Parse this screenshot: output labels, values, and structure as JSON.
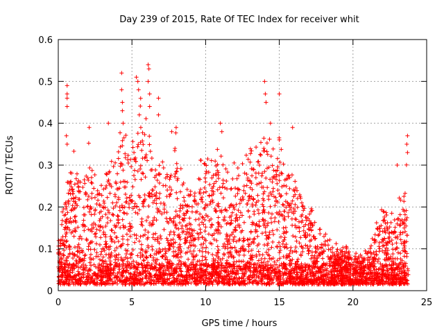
{
  "chart_data": {
    "type": "scatter",
    "title": "Day 239 of 2015, Rate Of TEC Index for receiver whit",
    "xlabel": "GPS time / hours",
    "ylabel": "ROTI / TECUs",
    "xlim": [
      0,
      25
    ],
    "ylim": [
      0,
      0.6
    ],
    "x_ticks": [
      0,
      5,
      10,
      15,
      20,
      25
    ],
    "x_tick_labels": [
      "0",
      "5",
      "10",
      "15",
      "20",
      "25"
    ],
    "y_ticks": [
      0,
      0.1,
      0.2,
      0.3,
      0.4,
      0.5,
      0.6
    ],
    "y_tick_labels": [
      "0",
      "0.1",
      "0.2",
      "0.3",
      "0.4",
      "0.5",
      "0.6"
    ],
    "grid": true,
    "marker": "+",
    "color": "#ff0000",
    "data_range_hours": [
      0,
      23.75
    ],
    "envelope": {
      "description": "approximate upper envelope of ROTI vs GPS time",
      "x": [
        0,
        0.5,
        1,
        1.5,
        2,
        2.5,
        3,
        3.5,
        4,
        4.5,
        5,
        5.5,
        6,
        6.5,
        7,
        7.5,
        8,
        8.5,
        9,
        9.5,
        10,
        10.5,
        11,
        11.5,
        12,
        12.5,
        13,
        13.5,
        14,
        14.5,
        15,
        15.5,
        16,
        16.5,
        17,
        17.5,
        18,
        18.5,
        19,
        19.5,
        20,
        20.5,
        21,
        21.5,
        22,
        22.5,
        23,
        23.5,
        23.75
      ],
      "y": [
        0.12,
        0.22,
        0.3,
        0.25,
        0.33,
        0.28,
        0.24,
        0.32,
        0.3,
        0.4,
        0.33,
        0.42,
        0.38,
        0.3,
        0.28,
        0.26,
        0.34,
        0.26,
        0.24,
        0.3,
        0.34,
        0.3,
        0.34,
        0.26,
        0.28,
        0.3,
        0.32,
        0.32,
        0.4,
        0.32,
        0.36,
        0.3,
        0.28,
        0.22,
        0.2,
        0.16,
        0.14,
        0.12,
        0.1,
        0.1,
        0.08,
        0.08,
        0.1,
        0.14,
        0.2,
        0.18,
        0.18,
        0.26,
        0.34
      ]
    },
    "outliers": [
      {
        "x": 0.6,
        "y": 0.49
      },
      {
        "x": 0.6,
        "y": 0.47
      },
      {
        "x": 0.6,
        "y": 0.46
      },
      {
        "x": 0.6,
        "y": 0.44
      },
      {
        "x": 0.55,
        "y": 0.37
      },
      {
        "x": 0.6,
        "y": 0.35
      },
      {
        "x": 2.1,
        "y": 0.39
      },
      {
        "x": 3.4,
        "y": 0.4
      },
      {
        "x": 4.3,
        "y": 0.52
      },
      {
        "x": 4.3,
        "y": 0.48
      },
      {
        "x": 4.35,
        "y": 0.45
      },
      {
        "x": 4.35,
        "y": 0.43
      },
      {
        "x": 4.4,
        "y": 0.4
      },
      {
        "x": 5.3,
        "y": 0.51
      },
      {
        "x": 5.4,
        "y": 0.5
      },
      {
        "x": 5.45,
        "y": 0.48
      },
      {
        "x": 5.5,
        "y": 0.42
      },
      {
        "x": 5.6,
        "y": 0.39
      },
      {
        "x": 6.1,
        "y": 0.54
      },
      {
        "x": 6.15,
        "y": 0.53
      },
      {
        "x": 6.1,
        "y": 0.5
      },
      {
        "x": 6.2,
        "y": 0.47
      },
      {
        "x": 6.2,
        "y": 0.44
      },
      {
        "x": 6.8,
        "y": 0.46
      },
      {
        "x": 6.8,
        "y": 0.42
      },
      {
        "x": 7.7,
        "y": 0.38
      },
      {
        "x": 8.0,
        "y": 0.39
      },
      {
        "x": 11.0,
        "y": 0.4
      },
      {
        "x": 11.1,
        "y": 0.38
      },
      {
        "x": 14.0,
        "y": 0.5
      },
      {
        "x": 14.05,
        "y": 0.47
      },
      {
        "x": 14.1,
        "y": 0.45
      },
      {
        "x": 14.4,
        "y": 0.4
      },
      {
        "x": 15.0,
        "y": 0.47
      },
      {
        "x": 15.0,
        "y": 0.36
      },
      {
        "x": 15.9,
        "y": 0.39
      },
      {
        "x": 23.7,
        "y": 0.37
      },
      {
        "x": 23.65,
        "y": 0.35
      },
      {
        "x": 23.7,
        "y": 0.33
      },
      {
        "x": 23.0,
        "y": 0.3
      }
    ]
  }
}
